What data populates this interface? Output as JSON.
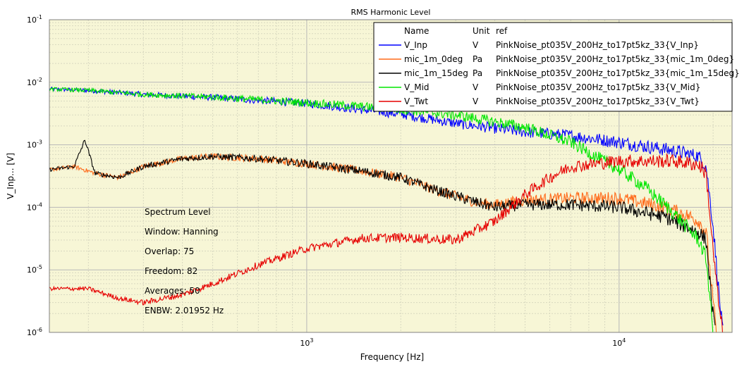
{
  "chart_data": {
    "type": "line",
    "title": "RMS Harmonic Level",
    "xlabel": "Frequency [Hz]",
    "ylabel": "V_Inp... [V]",
    "xscale": "log",
    "yscale": "log",
    "xlim": [
      150,
      23000
    ],
    "ylim": [
      1e-06,
      0.1
    ],
    "grid": true,
    "legend_position": "top-right",
    "background_color": "#f7f6d6",
    "x_ticks": [
      {
        "value": 1000,
        "base": "10",
        "exp": "3"
      },
      {
        "value": 10000,
        "base": "10",
        "exp": "4"
      }
    ],
    "y_ticks": [
      {
        "value": 1e-06,
        "base": "10",
        "exp": "-6"
      },
      {
        "value": 1e-05,
        "base": "10",
        "exp": "-5"
      },
      {
        "value": 0.0001,
        "base": "10",
        "exp": "-4"
      },
      {
        "value": 0.001,
        "base": "10",
        "exp": "-3"
      },
      {
        "value": 0.01,
        "base": "10",
        "exp": "-2"
      },
      {
        "value": 0.1,
        "base": "10",
        "exp": "-1"
      }
    ],
    "legend_headers": {
      "name": "Name",
      "unit": "Unit",
      "ref": "ref"
    },
    "series": [
      {
        "name": "V_Inp",
        "unit": "V",
        "ref": "PinkNoise_pt035V_200Hz_to17pt5kz_33{V_Inp}",
        "color": "#0000ff",
        "x": [
          150,
          200,
          300,
          500,
          1000,
          2000,
          3000,
          5000,
          7000,
          10000,
          15000,
          18000,
          19000,
          20000,
          21000,
          21500
        ],
        "y": [
          0.0078,
          0.0074,
          0.0064,
          0.0057,
          0.0046,
          0.0031,
          0.0022,
          0.0016,
          0.0014,
          0.0011,
          0.0008,
          0.00065,
          0.00045,
          5e-05,
          3e-06,
          1e-06
        ]
      },
      {
        "name": "mic_1m_0deg",
        "unit": "Pa",
        "ref": "PinkNoise_pt035V_200Hz_to17pt5kz_33{mic_1m_0deg}",
        "color": "#ff6a1a",
        "x": [
          150,
          180,
          210,
          250,
          300,
          400,
          500,
          700,
          1000,
          1500,
          2000,
          2500,
          3000,
          3500,
          4000,
          5000,
          7000,
          10000,
          14000,
          17000,
          18000,
          19000,
          20000,
          20500
        ],
        "y": [
          0.0004,
          0.00045,
          0.00035,
          0.0003,
          0.00045,
          0.0006,
          0.00065,
          0.0006,
          0.0005,
          0.00038,
          0.0003,
          0.0002,
          0.00015,
          0.00012,
          0.00011,
          0.00013,
          0.00014,
          0.00014,
          0.0001,
          7e-05,
          6e-05,
          4e-05,
          3e-06,
          1e-06
        ]
      },
      {
        "name": "mic_1m_15deg",
        "unit": "Pa",
        "ref": "PinkNoise_pt035V_200Hz_to17pt5kz_33{mic_1m_15deg}",
        "color": "#000000",
        "x": [
          150,
          180,
          195,
          210,
          250,
          300,
          400,
          500,
          700,
          1000,
          1500,
          2000,
          2500,
          3000,
          3500,
          4000,
          5000,
          7000,
          10000,
          14000,
          17000,
          18000,
          19000,
          19800,
          20300
        ],
        "y": [
          0.0004,
          0.00045,
          0.0012,
          0.00035,
          0.0003,
          0.00045,
          0.0006,
          0.00065,
          0.0006,
          0.0005,
          0.00038,
          0.0003,
          0.0002,
          0.00015,
          0.00012,
          0.0001,
          0.00011,
          0.00011,
          0.0001,
          7e-05,
          4.5e-05,
          4e-05,
          3e-05,
          3e-06,
          1e-06
        ]
      },
      {
        "name": "V_Mid",
        "unit": "V",
        "ref": "PinkNoise_pt035V_200Hz_to17pt5kz_33{V_Mid}",
        "color": "#00e600",
        "x": [
          150,
          200,
          300,
          500,
          1000,
          2000,
          3000,
          5000,
          7000,
          10000,
          12000,
          15000,
          18000,
          19000,
          19500,
          20000
        ],
        "y": [
          0.0078,
          0.0074,
          0.0064,
          0.0058,
          0.0047,
          0.0037,
          0.003,
          0.0019,
          0.0011,
          0.0004,
          0.00022,
          8e-05,
          3e-05,
          1.5e-05,
          4e-06,
          1e-06
        ]
      },
      {
        "name": "V_Twt",
        "unit": "V",
        "ref": "PinkNoise_pt035V_200Hz_to17pt5kz_33{V_Twt}",
        "color": "#e60000",
        "x": [
          150,
          200,
          250,
          300,
          400,
          500,
          700,
          1000,
          1500,
          2000,
          3000,
          4000,
          5000,
          6000,
          7000,
          10000,
          15000,
          18000,
          19000,
          20000,
          21000,
          21500
        ],
        "y": [
          5e-06,
          5e-06,
          3.5e-06,
          3e-06,
          4e-06,
          6e-06,
          1.2e-05,
          2.2e-05,
          3.2e-05,
          3.3e-05,
          3e-05,
          6e-05,
          0.00016,
          0.0003,
          0.00045,
          0.00055,
          0.00055,
          0.00048,
          0.00035,
          2e-05,
          2e-06,
          1e-06
        ]
      }
    ],
    "annotations": [
      "Spectrum Level",
      "Window: Hanning",
      "Overlap: 75",
      "Freedom: 82",
      "Averages: 50",
      "ENBW: 2.01952 Hz"
    ]
  }
}
